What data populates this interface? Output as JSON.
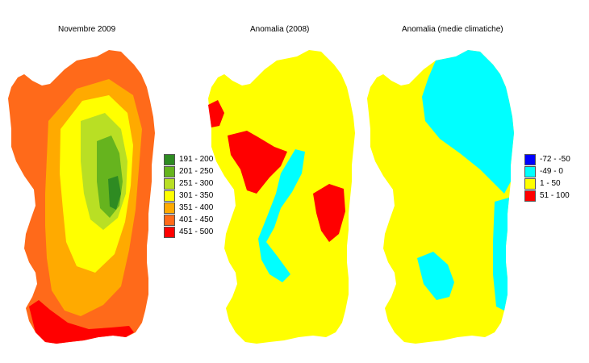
{
  "maps": [
    {
      "title": "Novembre 2009"
    },
    {
      "title": "Anomalia (2008)"
    },
    {
      "title": "Anomalia (medie climatiche)"
    }
  ],
  "legend_rainfall": [
    {
      "label": "191 - 200",
      "color": "#2e8b22"
    },
    {
      "label": "201 - 250",
      "color": "#66b41e"
    },
    {
      "label": "251 - 300",
      "color": "#b9df24"
    },
    {
      "label": "301 - 350",
      "color": "#ffff00"
    },
    {
      "label": "351 - 400",
      "color": "#ffaa00"
    },
    {
      "label": "401 - 450",
      "color": "#ff6a1a"
    },
    {
      "label": "451 - 500",
      "color": "#ff0000"
    }
  ],
  "legend_anomaly": [
    {
      "label": "-72 - -50",
      "color": "#0000ff"
    },
    {
      "label": "-49 - 0",
      "color": "#00ffff"
    },
    {
      "label": "1 - 50",
      "color": "#ffff00"
    },
    {
      "label": "51 - 100",
      "color": "#ff0000"
    }
  ]
}
